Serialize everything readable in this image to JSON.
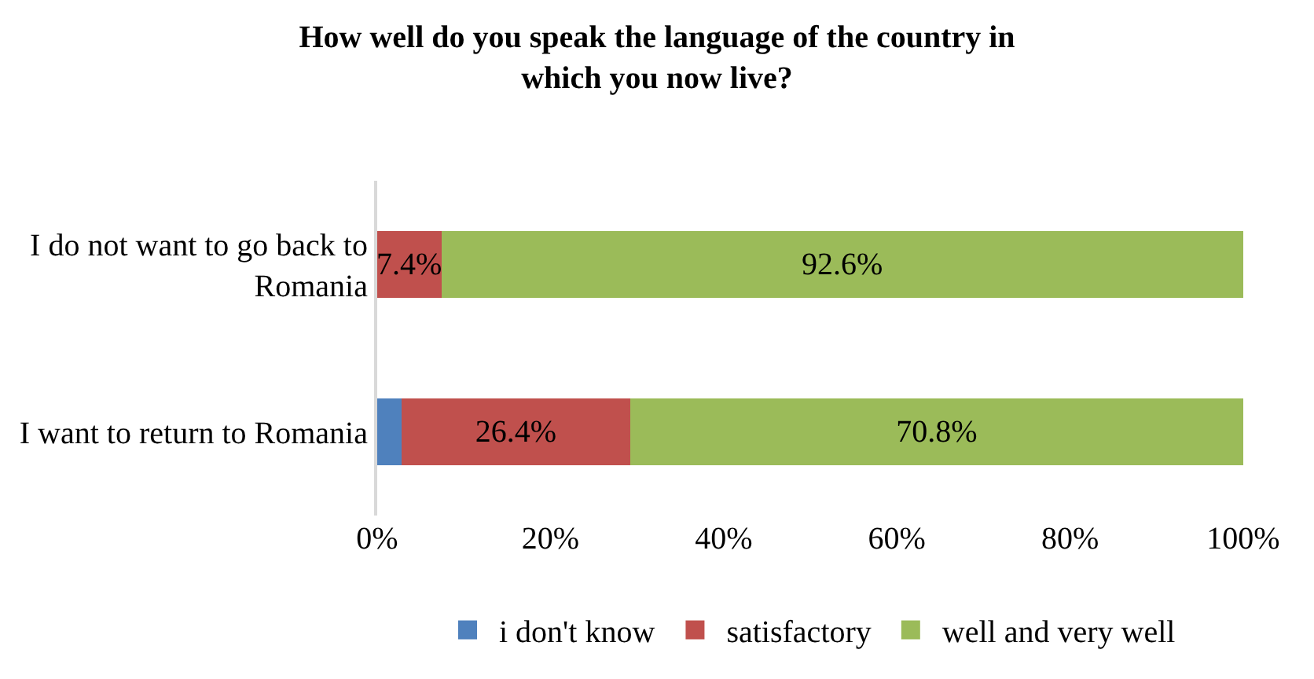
{
  "chart_data": {
    "type": "bar",
    "orientation": "horizontal",
    "stacked": true,
    "title": "How well do you speak the language of the country in which you now live?",
    "categories": [
      "I do not want to go back to Romania",
      "I want to return to Romania"
    ],
    "series": [
      {
        "name": "i don't know",
        "color": "#4f81bd",
        "values": [
          0,
          2.8
        ],
        "value_labels": [
          null,
          null
        ]
      },
      {
        "name": "satisfactory",
        "color": "#c0504d",
        "values": [
          7.4,
          26.4
        ],
        "value_labels": [
          "7.4%",
          "26.4%"
        ]
      },
      {
        "name": "well and very well",
        "color": "#9bbb59",
        "values": [
          92.6,
          70.8
        ],
        "value_labels": [
          "92.6%",
          "70.8%"
        ]
      }
    ],
    "xlim": [
      0,
      100
    ],
    "xticks": [
      {
        "value": 0,
        "label": "0%"
      },
      {
        "value": 20,
        "label": "20%"
      },
      {
        "value": 40,
        "label": "40%"
      },
      {
        "value": 60,
        "label": "60%"
      },
      {
        "value": 80,
        "label": "80%"
      },
      {
        "value": 100,
        "label": "100%"
      }
    ],
    "legend": "bottom"
  }
}
